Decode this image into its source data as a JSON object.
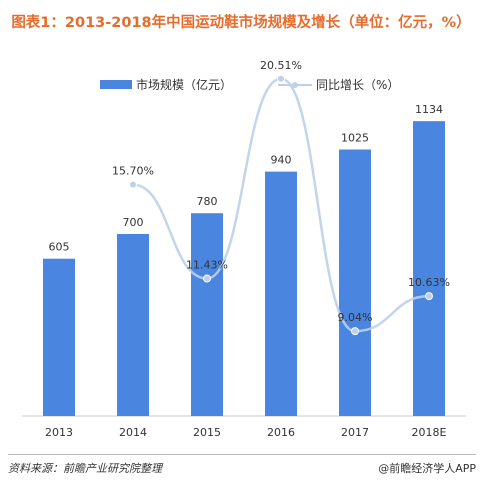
{
  "title": "图表1：2013-2018年中国运动鞋市场规模及增长（单位：亿元，%）",
  "legend": {
    "bar_label": "市场规模（亿元）",
    "line_label": "同比增长（%）"
  },
  "chart_data": {
    "type": "bar",
    "title": "图表1：2013-2018年中国运动鞋市场规模及增长（单位：亿元，%）",
    "categories": [
      "2013",
      "2014",
      "2015",
      "2016",
      "2017",
      "2018E"
    ],
    "series": [
      {
        "name": "市场规模（亿元）",
        "type": "bar",
        "values": [
          605,
          700,
          780,
          940,
          1025,
          1134
        ],
        "labels": [
          "605",
          "700",
          "780",
          "940",
          "1025",
          "1134"
        ],
        "color": "#4a86e0"
      },
      {
        "name": "同比增长（%）",
        "type": "line",
        "values": [
          null,
          15.7,
          11.43,
          20.51,
          9.04,
          10.63
        ],
        "labels": [
          "",
          "15.70%",
          "11.43%",
          "20.51%",
          "9.04%",
          "10.63%"
        ],
        "color": "#bcd0ea"
      }
    ],
    "grid": false,
    "legend_position": "top"
  },
  "footer": {
    "source": "资料来源：前瞻产业研究院整理",
    "brand": "@前瞻经济学人APP"
  },
  "colors": {
    "bar": "#4a86e0",
    "line": "#bcd0ea",
    "title": "#e66c2c"
  }
}
